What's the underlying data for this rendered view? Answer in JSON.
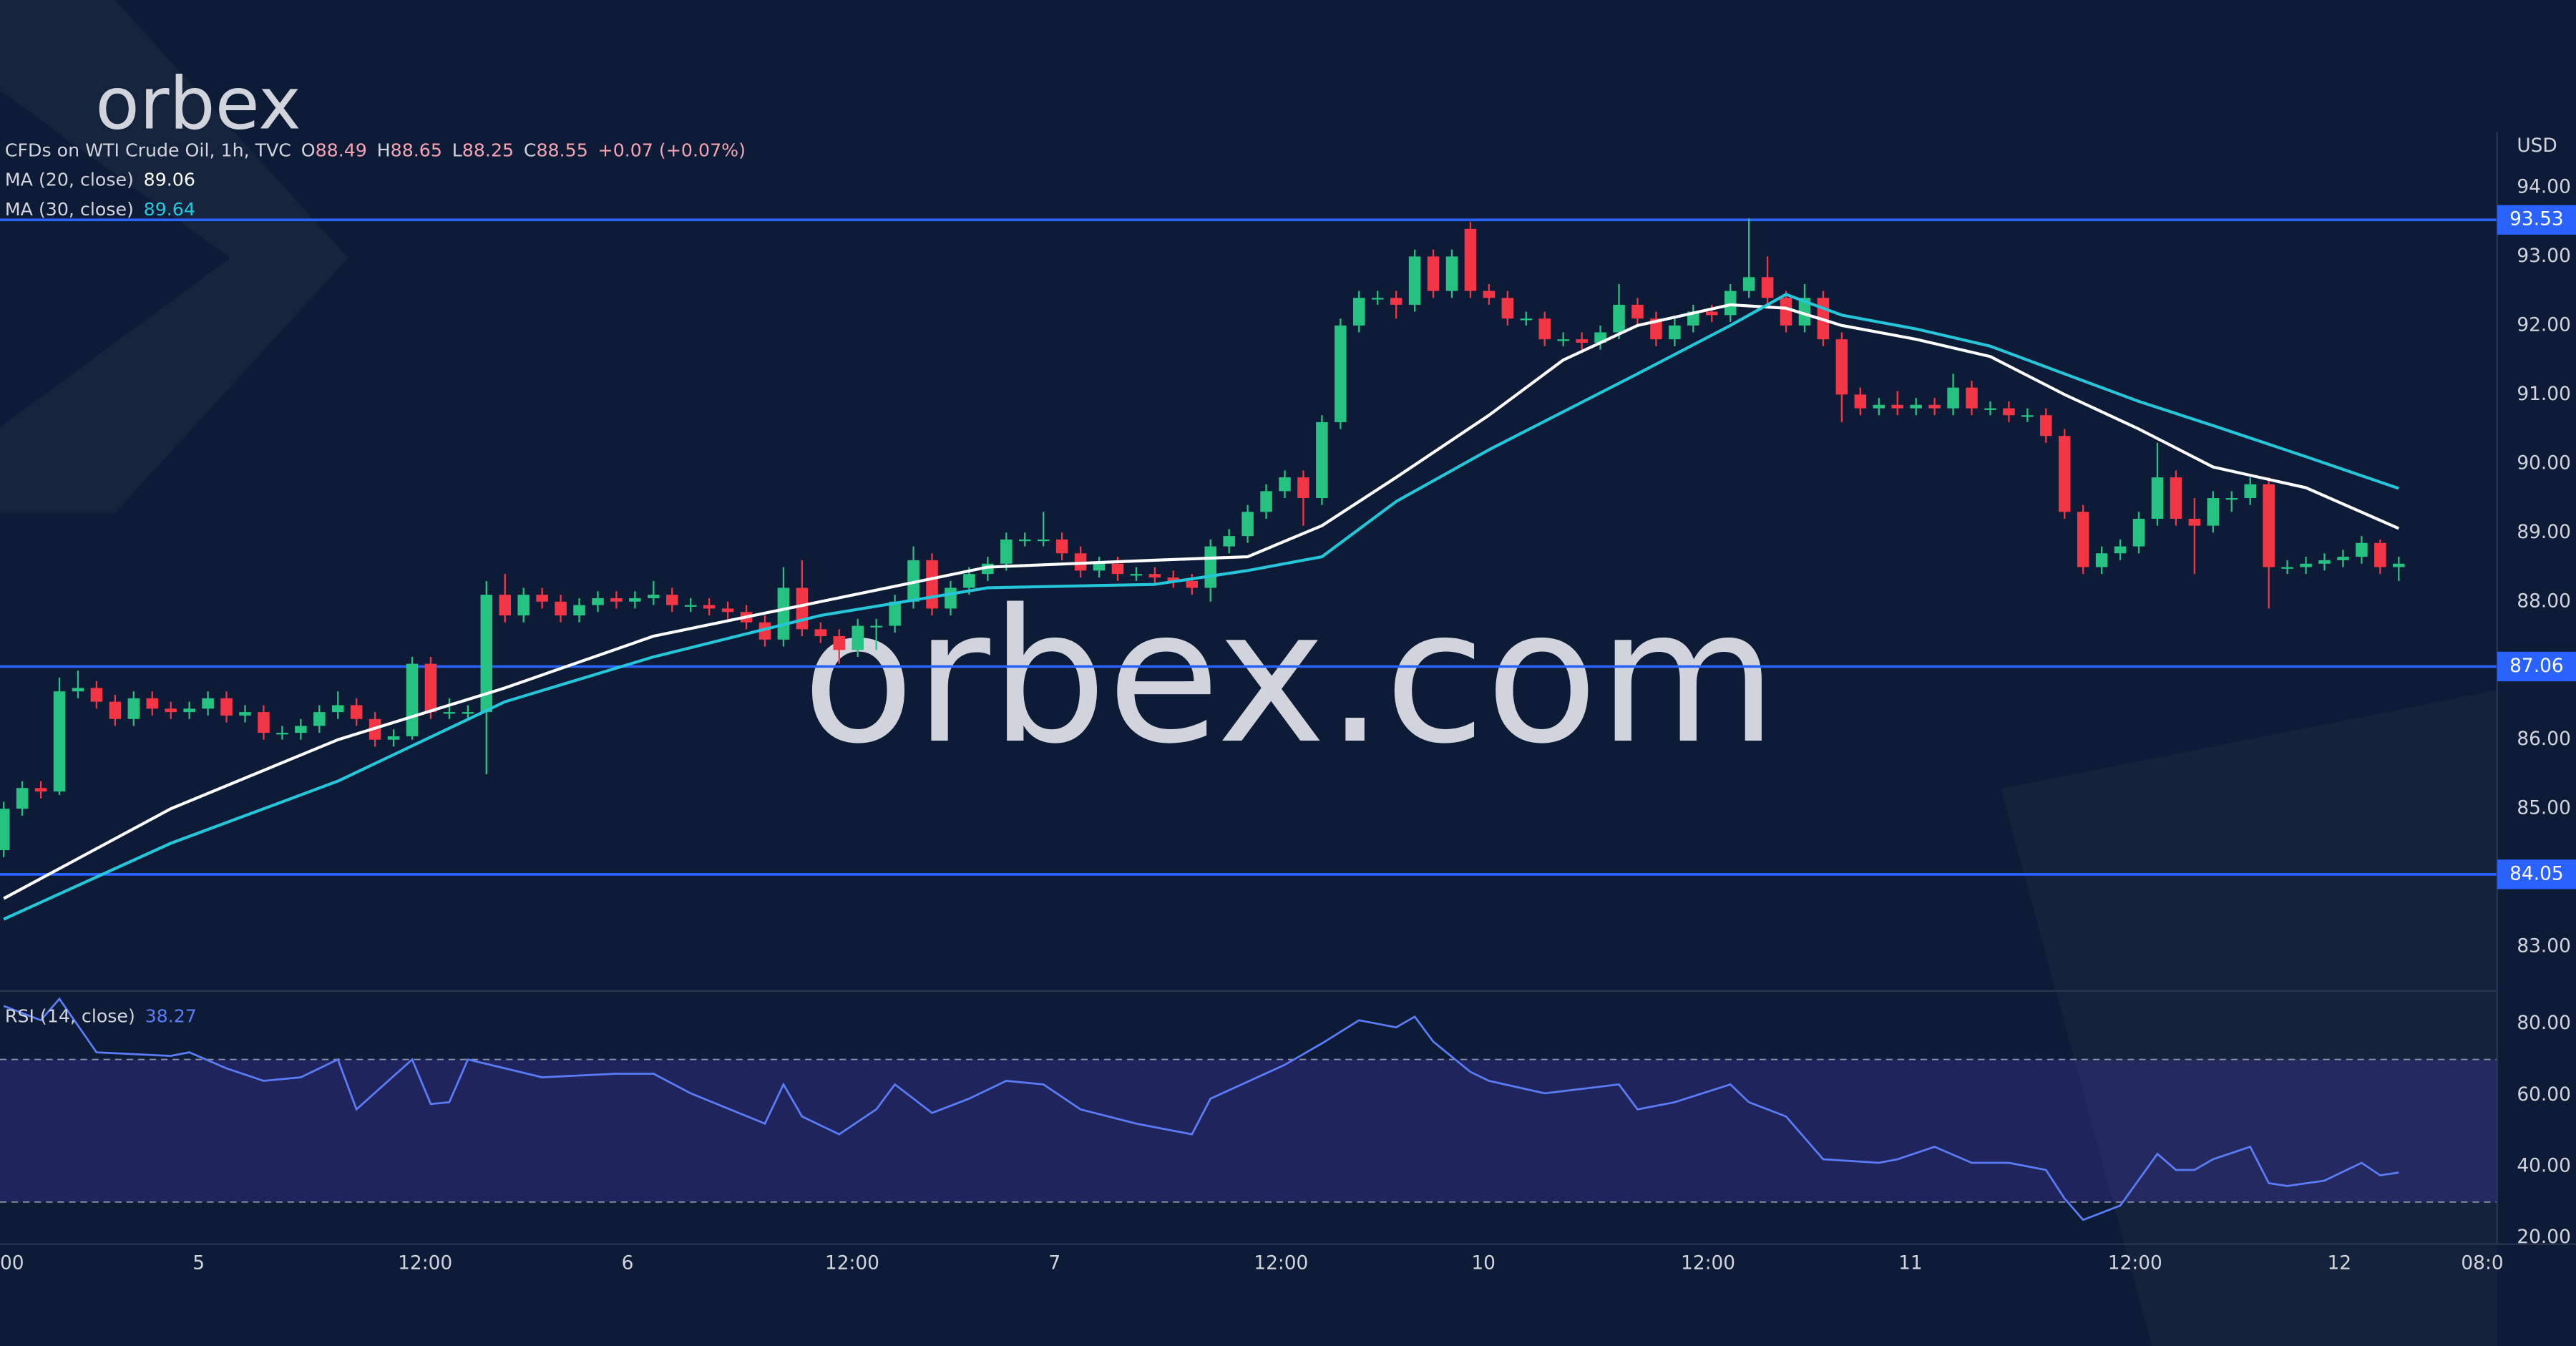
{
  "logo": "orbex",
  "watermark": "orbex.com",
  "chart_data": {
    "type": "candlestick",
    "title": "CFDs on WTI Crude Oil, 1h, TVC",
    "ohlc_legend": [
      {
        "label": "O",
        "value": "88.49"
      },
      {
        "label": "H",
        "value": "88.65"
      },
      {
        "label": "L",
        "value": "88.25"
      },
      {
        "label": "C",
        "value": "88.55"
      }
    ],
    "change": "+0.07 (+0.07%)",
    "currency": "USD",
    "up_color": "#26c281",
    "down_color": "#f23645",
    "open": [
      84.4,
      85.0,
      85.3,
      85.25,
      86.7,
      86.75,
      86.55,
      86.3,
      86.6,
      86.45,
      86.4,
      86.45,
      86.6,
      86.35,
      86.4,
      86.1,
      86.1,
      86.2,
      86.4,
      86.5,
      86.3,
      86.0,
      86.05,
      87.1,
      86.4,
      86.4,
      86.4,
      88.1,
      87.8,
      88.1,
      88.0,
      87.8,
      87.95,
      88.05,
      88.0,
      88.05,
      88.1,
      87.95,
      87.95,
      87.9,
      87.85,
      87.7,
      87.45,
      88.2,
      87.6,
      87.5,
      87.3,
      87.65,
      87.65,
      88.0,
      88.6,
      87.9,
      88.2,
      88.4,
      88.55,
      88.9,
      88.9,
      88.9,
      88.7,
      88.45,
      88.55,
      88.4,
      88.4,
      88.35,
      88.3,
      88.2,
      88.8,
      88.95,
      89.3,
      89.6,
      89.8,
      89.5,
      90.6,
      92.0,
      92.4,
      92.4,
      92.3,
      93.0,
      92.5,
      93.4,
      92.5,
      92.4,
      92.1,
      92.1,
      91.8,
      91.8,
      91.75,
      91.9,
      92.3,
      92.1,
      91.8,
      92.0,
      92.2,
      92.15,
      92.5,
      92.7,
      92.4,
      92.0,
      92.4,
      91.8,
      91.0,
      90.8,
      90.85,
      90.8,
      90.85,
      90.8,
      91.1,
      90.8,
      90.8,
      90.7,
      90.7,
      90.4,
      89.3,
      88.5,
      88.7,
      88.8,
      89.2,
      89.8,
      89.2,
      89.1,
      89.5,
      89.5,
      89.7,
      88.5,
      88.5,
      88.55,
      88.6,
      88.65,
      88.85,
      88.5
    ],
    "high": [
      85.1,
      85.4,
      85.4,
      86.9,
      87.0,
      86.85,
      86.65,
      86.7,
      86.7,
      86.55,
      86.55,
      86.7,
      86.7,
      86.5,
      86.5,
      86.2,
      86.3,
      86.5,
      86.7,
      86.6,
      86.4,
      86.15,
      87.2,
      87.2,
      86.6,
      86.5,
      88.3,
      88.4,
      88.2,
      88.2,
      88.1,
      88.05,
      88.15,
      88.15,
      88.15,
      88.3,
      88.2,
      88.05,
      88.05,
      88.0,
      87.95,
      87.8,
      88.5,
      88.6,
      87.7,
      87.6,
      87.75,
      87.75,
      88.1,
      88.8,
      88.7,
      88.3,
      88.5,
      88.65,
      89.0,
      89.0,
      89.3,
      89.0,
      88.8,
      88.65,
      88.65,
      88.5,
      88.5,
      88.45,
      88.4,
      88.9,
      89.05,
      89.4,
      89.7,
      89.9,
      89.9,
      90.7,
      92.1,
      92.5,
      92.5,
      92.5,
      93.1,
      93.1,
      93.1,
      93.5,
      92.6,
      92.5,
      92.2,
      92.2,
      91.9,
      91.9,
      92.0,
      92.6,
      92.4,
      92.2,
      92.1,
      92.3,
      92.3,
      92.6,
      93.55,
      93.0,
      92.5,
      92.6,
      92.5,
      91.9,
      91.1,
      90.95,
      91.05,
      90.95,
      90.95,
      91.3,
      91.2,
      90.9,
      90.9,
      90.8,
      90.8,
      90.5,
      89.4,
      88.8,
      88.9,
      89.3,
      90.3,
      89.9,
      89.5,
      89.6,
      89.6,
      89.8,
      89.8,
      88.6,
      88.65,
      88.7,
      88.75,
      88.95,
      88.9,
      88.65
    ],
    "low": [
      84.3,
      84.9,
      85.15,
      85.2,
      86.6,
      86.45,
      86.2,
      86.2,
      86.35,
      86.3,
      86.3,
      86.35,
      86.25,
      86.25,
      86.0,
      86.0,
      86.0,
      86.1,
      86.3,
      86.2,
      85.9,
      85.9,
      86.0,
      86.3,
      86.3,
      86.3,
      85.5,
      87.7,
      87.7,
      87.9,
      87.7,
      87.7,
      87.85,
      87.9,
      87.9,
      87.95,
      87.85,
      87.85,
      87.8,
      87.75,
      87.6,
      87.35,
      87.35,
      87.5,
      87.4,
      87.1,
      87.2,
      87.3,
      87.55,
      87.9,
      87.8,
      87.8,
      88.1,
      88.3,
      88.45,
      88.8,
      88.8,
      88.6,
      88.35,
      88.35,
      88.3,
      88.3,
      88.25,
      88.2,
      88.1,
      88.0,
      88.7,
      88.85,
      89.2,
      89.5,
      89.1,
      89.4,
      90.5,
      91.9,
      92.3,
      92.1,
      92.2,
      92.4,
      92.4,
      92.4,
      92.3,
      92.0,
      92.0,
      91.7,
      91.7,
      91.65,
      91.65,
      91.8,
      92.0,
      91.7,
      91.7,
      91.9,
      92.05,
      92.05,
      92.4,
      92.3,
      91.9,
      91.9,
      91.7,
      90.6,
      90.7,
      90.7,
      90.7,
      90.7,
      90.7,
      90.7,
      90.7,
      90.7,
      90.6,
      90.6,
      90.3,
      89.2,
      88.4,
      88.4,
      88.6,
      88.7,
      89.1,
      89.1,
      88.4,
      89.0,
      89.3,
      89.4,
      87.9,
      88.4,
      88.4,
      88.45,
      88.5,
      88.55,
      88.4,
      88.3
    ],
    "close": [
      85.0,
      85.3,
      85.25,
      86.7,
      86.75,
      86.55,
      86.3,
      86.6,
      86.45,
      86.4,
      86.45,
      86.6,
      86.35,
      86.4,
      86.1,
      86.1,
      86.2,
      86.4,
      86.5,
      86.3,
      86.0,
      86.05,
      87.1,
      86.4,
      86.4,
      86.4,
      88.1,
      87.8,
      88.1,
      88.0,
      87.8,
      87.95,
      88.05,
      88.0,
      88.05,
      88.1,
      87.95,
      87.95,
      87.9,
      87.85,
      87.7,
      87.45,
      88.2,
      87.6,
      87.5,
      87.3,
      87.65,
      87.65,
      88.0,
      88.6,
      87.9,
      88.2,
      88.4,
      88.55,
      88.9,
      88.9,
      88.9,
      88.7,
      88.45,
      88.55,
      88.4,
      88.4,
      88.35,
      88.3,
      88.2,
      88.8,
      88.95,
      89.3,
      89.6,
      89.8,
      89.5,
      90.6,
      92.0,
      92.4,
      92.4,
      92.3,
      93.0,
      92.5,
      93.0,
      92.5,
      92.4,
      92.1,
      92.1,
      91.8,
      91.8,
      91.75,
      91.9,
      92.3,
      92.1,
      91.8,
      92.0,
      92.2,
      92.15,
      92.5,
      92.7,
      92.4,
      92.0,
      92.4,
      91.8,
      91.0,
      90.8,
      90.85,
      90.8,
      90.85,
      90.8,
      91.1,
      90.8,
      90.8,
      90.7,
      90.7,
      90.4,
      89.3,
      88.5,
      88.7,
      88.8,
      89.2,
      89.8,
      89.2,
      89.1,
      89.5,
      89.5,
      89.7,
      88.5,
      88.5,
      88.55,
      88.6,
      88.65,
      88.85,
      88.5,
      88.55
    ],
    "xlim": [
      -0.2,
      134.3
    ],
    "xticks": [
      {
        "value": 0,
        "label": "00"
      },
      {
        "value": 10.5,
        "label": "5"
      },
      {
        "value": 22.7,
        "label": "12:00"
      },
      {
        "value": 33.6,
        "label": "6"
      },
      {
        "value": 45.7,
        "label": "12:00"
      },
      {
        "value": 56.6,
        "label": "7"
      },
      {
        "value": 68.8,
        "label": "12:00"
      },
      {
        "value": 79.7,
        "label": "10"
      },
      {
        "value": 91.8,
        "label": "12:00"
      },
      {
        "value": 102.7,
        "label": "11"
      },
      {
        "value": 114.8,
        "label": "12:00"
      },
      {
        "value": 125.8,
        "label": "12"
      },
      {
        "value": 133.5,
        "label": "08:0"
      }
    ],
    "ylim": [
      82.36,
      94.81
    ],
    "yticks": [
      {
        "value": 94,
        "label": "94.00"
      },
      {
        "value": 93,
        "label": "93.00"
      },
      {
        "value": 92,
        "label": "92.00"
      },
      {
        "value": 91,
        "label": "91.00"
      },
      {
        "value": 90,
        "label": "90.00"
      },
      {
        "value": 89,
        "label": "89.00"
      },
      {
        "value": 88,
        "label": "88.00"
      },
      {
        "value": 86,
        "label": "86.00"
      },
      {
        "value": 85,
        "label": "85.00"
      },
      {
        "value": 83,
        "label": "83.00"
      }
    ],
    "levels": {
      "values": [
        93.53,
        87.06,
        84.05
      ],
      "color": "#2962ff"
    },
    "series": [
      {
        "name": "MA (20, close)",
        "value_label": "89.06",
        "color": "#ffffff",
        "x": [
          0,
          9,
          18,
          27,
          35,
          44,
          53,
          62,
          67,
          71,
          75,
          80,
          84,
          88,
          93,
          96,
          99,
          103,
          107,
          111,
          115,
          119,
          124,
          129
        ],
        "values": [
          83.7,
          85.0,
          86.0,
          86.75,
          87.5,
          88.0,
          88.5,
          88.6,
          88.65,
          89.1,
          89.8,
          90.7,
          91.5,
          92.0,
          92.3,
          92.25,
          92.0,
          91.8,
          91.55,
          91.0,
          90.5,
          89.95,
          89.65,
          89.06
        ]
      },
      {
        "name": "MA (30, close)",
        "value_label": "89.64",
        "color": "#26c6da",
        "x": [
          0,
          9,
          18,
          27,
          35,
          44,
          53,
          62,
          67,
          71,
          75,
          80,
          84,
          88,
          93,
          96,
          99,
          103,
          107,
          111,
          115,
          119,
          124,
          129
        ],
        "values": [
          83.4,
          84.5,
          85.4,
          86.55,
          87.2,
          87.8,
          88.2,
          88.25,
          88.45,
          88.65,
          89.45,
          90.2,
          90.75,
          91.3,
          92.0,
          92.45,
          92.15,
          91.95,
          91.7,
          91.3,
          90.9,
          90.55,
          90.1,
          89.64
        ]
      }
    ],
    "rsi": {
      "name": "RSI (14, close)",
      "value_label": "38.27",
      "color": "#5b7cf7",
      "x": [
        0,
        2,
        3,
        5,
        9,
        10,
        12,
        14,
        16,
        18,
        19,
        22,
        23,
        24,
        25,
        27,
        29,
        33,
        35,
        37,
        41,
        42,
        43,
        45,
        47,
        48,
        50,
        52,
        54,
        56,
        58,
        61,
        64,
        65,
        69,
        71,
        73,
        75,
        76,
        77,
        79,
        80,
        83,
        87,
        88,
        90,
        93,
        94,
        96,
        98,
        101,
        102,
        104,
        106,
        108,
        110,
        111,
        112,
        114,
        116,
        117,
        118,
        119,
        121,
        122,
        123,
        125,
        127,
        128,
        129
      ],
      "values": [
        85,
        81,
        87,
        72,
        71,
        72,
        67.5,
        64,
        65,
        70,
        56,
        70,
        57.5,
        58,
        70,
        67.5,
        65,
        66,
        66,
        60.5,
        52,
        63,
        54,
        49,
        56,
        63,
        55,
        59,
        64,
        63,
        56,
        52,
        49,
        59,
        68.5,
        74.5,
        81,
        79,
        82,
        75,
        66.5,
        64,
        60.5,
        63,
        56,
        58,
        63,
        58,
        54,
        42,
        41,
        42,
        45.5,
        41,
        41,
        39,
        31,
        25,
        29,
        43.5,
        39,
        39,
        42,
        45.5,
        35.3,
        34.5,
        36,
        41,
        37.5,
        38.27
      ],
      "ylim": [
        18.2,
        89.2
      ],
      "yticks": [
        {
          "value": 80,
          "label": "80.00"
        },
        {
          "value": 60,
          "label": "60.00"
        },
        {
          "value": 40,
          "label": "40.00"
        },
        {
          "value": 20,
          "label": "20.00"
        }
      ],
      "bands": [
        30,
        70
      ]
    }
  }
}
